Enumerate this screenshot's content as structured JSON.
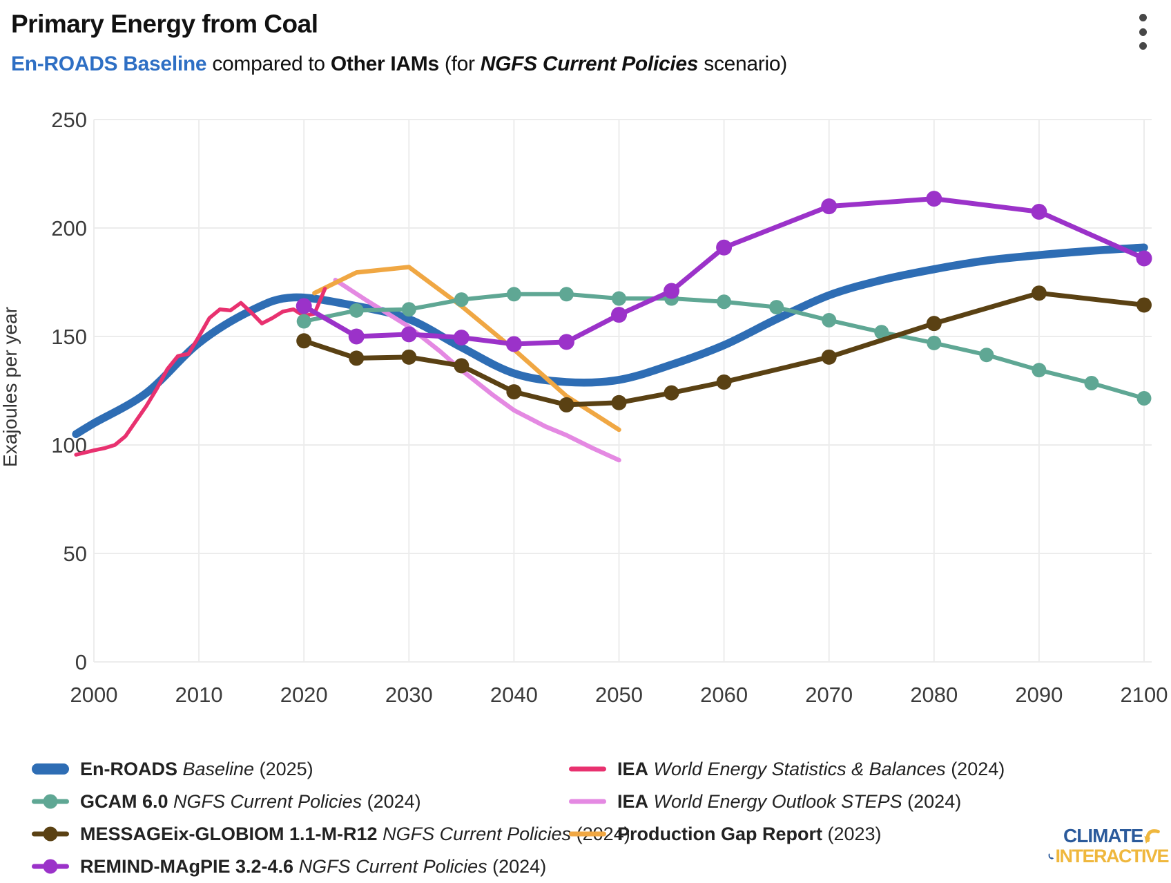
{
  "header": {
    "title": "Primary Energy from Coal",
    "subtitle": {
      "series_name": "En-ROADS Baseline",
      "middle": " compared to ",
      "group": "Other IAMs",
      "for_open": " (for ",
      "scenario": "NGFS Current Policies",
      "close": " scenario)"
    }
  },
  "colors": {
    "en_roads_blue": "#2e6db4",
    "gcam_teal": "#5fa794",
    "message_brown": "#5a4113",
    "remind_purple": "#9b32c9",
    "iea_pink": "#e8316f",
    "iea_violet": "#e489e2",
    "prodgap_orange": "#f0a743",
    "grid": "#ececec",
    "tick_text": "#3b3b3b",
    "subtitle_blue": "#2e6fc4",
    "logo_blue": "#2b5a9b",
    "logo_yellow": "#efb73d"
  },
  "chart_data": {
    "type": "line",
    "title": "Primary Energy from Coal",
    "xlabel": "",
    "ylabel": "Exajoules per year",
    "xlim": [
      1998.3,
      2100
    ],
    "ylim": [
      0,
      250
    ],
    "xticks": [
      2000,
      2010,
      2020,
      2030,
      2040,
      2050,
      2060,
      2070,
      2080,
      2090,
      2100
    ],
    "yticks": [
      0,
      50,
      100,
      150,
      200,
      250
    ],
    "grid": true,
    "legend_position": "bottom",
    "series": [
      {
        "id": "en_roads",
        "legend": {
          "name": "En-ROADS",
          "scenario": "Baseline",
          "year": "(2025)",
          "column": 1
        },
        "color": "#2e6db4",
        "line_width": 11.5,
        "markers": false,
        "marker_r": 0,
        "smooth": true,
        "swatch": "thick",
        "points": [
          [
            1998.3,
            105
          ],
          [
            2000,
            110
          ],
          [
            2005,
            124
          ],
          [
            2010,
            147
          ],
          [
            2015,
            162
          ],
          [
            2019,
            168
          ],
          [
            2025,
            164
          ],
          [
            2030,
            158
          ],
          [
            2035,
            145
          ],
          [
            2040,
            133
          ],
          [
            2045,
            129
          ],
          [
            2050,
            130
          ],
          [
            2055,
            137
          ],
          [
            2060,
            146
          ],
          [
            2065,
            158
          ],
          [
            2070,
            169
          ],
          [
            2075,
            176
          ],
          [
            2080,
            181
          ],
          [
            2085,
            185
          ],
          [
            2090,
            187.5
          ],
          [
            2095,
            189.5
          ],
          [
            2100,
            191
          ]
        ]
      },
      {
        "id": "iea_stats",
        "legend": {
          "name": "IEA",
          "scenario": "World Energy Statistics & Balances",
          "year": "(2024)",
          "column": 2
        },
        "color": "#e8316f",
        "line_width": 5.5,
        "markers": false,
        "marker_r": 0,
        "smooth": false,
        "swatch": "line",
        "points": [
          [
            1998.3,
            95.5
          ],
          [
            2000,
            97.5
          ],
          [
            2001,
            98.5
          ],
          [
            2002,
            100
          ],
          [
            2003,
            104
          ],
          [
            2004,
            111
          ],
          [
            2005,
            118
          ],
          [
            2006,
            126
          ],
          [
            2007,
            135
          ],
          [
            2008,
            141
          ],
          [
            2009,
            142
          ],
          [
            2010,
            150
          ],
          [
            2011,
            158.5
          ],
          [
            2012,
            162.5
          ],
          [
            2013,
            162
          ],
          [
            2014,
            165.5
          ],
          [
            2015,
            161
          ],
          [
            2016,
            156
          ],
          [
            2017,
            158.5
          ],
          [
            2018,
            161.5
          ],
          [
            2019,
            162.5
          ],
          [
            2020,
            159.5
          ],
          [
            2021,
            160.5
          ],
          [
            2022,
            172
          ]
        ]
      },
      {
        "id": "iea_steps",
        "legend": {
          "name": "IEA",
          "scenario": "World Energy Outlook STEPS",
          "year": "(2024)",
          "column": 2
        },
        "color": "#e489e2",
        "line_width": 6.5,
        "markers": false,
        "marker_r": 0,
        "smooth": false,
        "swatch": "line",
        "points": [
          [
            2023,
            176
          ],
          [
            2026,
            166.5
          ],
          [
            2030,
            154.5
          ],
          [
            2033,
            143
          ],
          [
            2035,
            134.5
          ],
          [
            2038,
            123
          ],
          [
            2040,
            116
          ],
          [
            2043,
            108.5
          ],
          [
            2045,
            104.5
          ],
          [
            2047.5,
            98.5
          ],
          [
            2050,
            93
          ]
        ]
      },
      {
        "id": "prod_gap",
        "legend": {
          "name": "Production Gap Report",
          "scenario": "",
          "year": "(2023)",
          "column": 2
        },
        "color": "#f0a743",
        "line_width": 6.5,
        "markers": false,
        "marker_r": 0,
        "smooth": false,
        "swatch": "line",
        "points": [
          [
            2021,
            170
          ],
          [
            2025,
            179.5
          ],
          [
            2030,
            182
          ],
          [
            2035,
            164
          ],
          [
            2040,
            144
          ],
          [
            2045,
            122.5
          ],
          [
            2050,
            107
          ]
        ]
      },
      {
        "id": "gcam",
        "legend": {
          "name": "GCAM 6.0",
          "scenario": "NGFS Current Policies",
          "year": "(2024)",
          "column": 1
        },
        "color": "#5fa794",
        "line_width": 6,
        "markers": true,
        "marker_r": 10.5,
        "smooth": false,
        "swatch": "line-dot",
        "points": [
          [
            2020,
            157
          ],
          [
            2025,
            162
          ],
          [
            2030,
            162.5
          ],
          [
            2035,
            167
          ],
          [
            2040,
            169.5
          ],
          [
            2045,
            169.5
          ],
          [
            2050,
            167.5
          ],
          [
            2055,
            167.5
          ],
          [
            2060,
            166
          ],
          [
            2065,
            163.5
          ],
          [
            2070,
            157.5
          ],
          [
            2075,
            152
          ],
          [
            2080,
            147
          ],
          [
            2085,
            141.5
          ],
          [
            2090,
            134.5
          ],
          [
            2095,
            128.5
          ],
          [
            2100,
            121.5
          ]
        ]
      },
      {
        "id": "message",
        "legend": {
          "name": "MESSAGEix-GLOBIOM 1.1-M-R12",
          "scenario": "NGFS Current Policies",
          "year": "(2024)",
          "column": 1
        },
        "color": "#5a4113",
        "line_width": 7,
        "markers": true,
        "marker_r": 11,
        "smooth": false,
        "swatch": "line-dot",
        "points": [
          [
            2020,
            148
          ],
          [
            2025,
            140
          ],
          [
            2030,
            140.5
          ],
          [
            2035,
            136.5
          ],
          [
            2040,
            124.5
          ],
          [
            2045,
            118.5
          ],
          [
            2050,
            119.5
          ],
          [
            2055,
            124
          ],
          [
            2060,
            129
          ],
          [
            2070,
            140.5
          ],
          [
            2080,
            156
          ],
          [
            2090,
            170
          ],
          [
            2100,
            164.5
          ]
        ]
      },
      {
        "id": "remind",
        "legend": {
          "name": "REMIND-MAgPIE 3.2-4.6",
          "scenario": "NGFS Current Policies",
          "year": "(2024)",
          "column": 1
        },
        "color": "#9b32c9",
        "line_width": 7,
        "markers": true,
        "marker_r": 11.5,
        "smooth": false,
        "swatch": "line-dot",
        "points": [
          [
            2020,
            164
          ],
          [
            2025,
            150
          ],
          [
            2030,
            151
          ],
          [
            2035,
            149.5
          ],
          [
            2040,
            146.5
          ],
          [
            2045,
            147.5
          ],
          [
            2050,
            160
          ],
          [
            2055,
            171
          ],
          [
            2060,
            191
          ],
          [
            2070,
            210
          ],
          [
            2080,
            213.5
          ],
          [
            2090,
            207.5
          ],
          [
            2100,
            186
          ]
        ]
      }
    ]
  },
  "logo": {
    "line1": "CLIMATE",
    "line2": "INTERACTIVE"
  }
}
